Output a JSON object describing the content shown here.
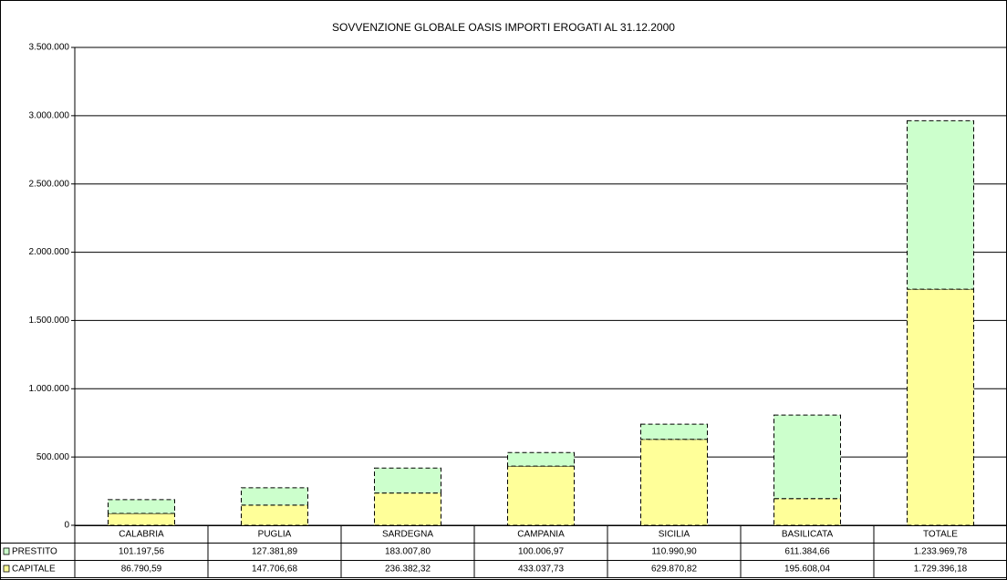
{
  "chart_data": {
    "type": "stacked_bar",
    "title": "SOVVENZIONE GLOBALE OASIS IMPORTI  EROGATI  AL 31.12.2000",
    "categories": [
      "CALABRIA",
      "PUGLIA",
      "SARDEGNA",
      "CAMPANIA",
      "SICILIA",
      "BASILICATA",
      "TOTALE"
    ],
    "series": [
      {
        "name": "PRESTITO",
        "color": "#ccffcc",
        "values": [
          101197.56,
          127381.89,
          183007.8,
          100006.97,
          110990.9,
          611384.66,
          1233969.78
        ],
        "value_labels": [
          "101.197,56",
          "127.381,89",
          "183.007,80",
          "100.006,97",
          "110.990,90",
          "611.384,66",
          "1.233.969,78"
        ]
      },
      {
        "name": "CAPITALE",
        "color": "#ffff99",
        "values": [
          86790.59,
          147706.68,
          236382.32,
          433037.73,
          629870.82,
          195608.04,
          1729396.18
        ],
        "value_labels": [
          "86.790,59",
          "147.706,68",
          "236.382,32",
          "433.037,73",
          "629.870,82",
          "195.608,04",
          "1.729.396,18"
        ]
      }
    ],
    "ylim": [
      0,
      3500000
    ],
    "yticks": [
      0,
      {
        "value": 500000,
        "label": "500.000"
      },
      {
        "value": 1000000,
        "label": "1.000.000"
      },
      {
        "value": 1500000,
        "label": "1.500.000"
      },
      {
        "value": 2000000,
        "label": "2.000.000"
      },
      {
        "value": 2500000,
        "label": "2.500.000"
      },
      {
        "value": 3000000,
        "label": "3.000.000"
      },
      {
        "value": 3500000,
        "label": "3.500.000"
      }
    ],
    "grid": true
  }
}
